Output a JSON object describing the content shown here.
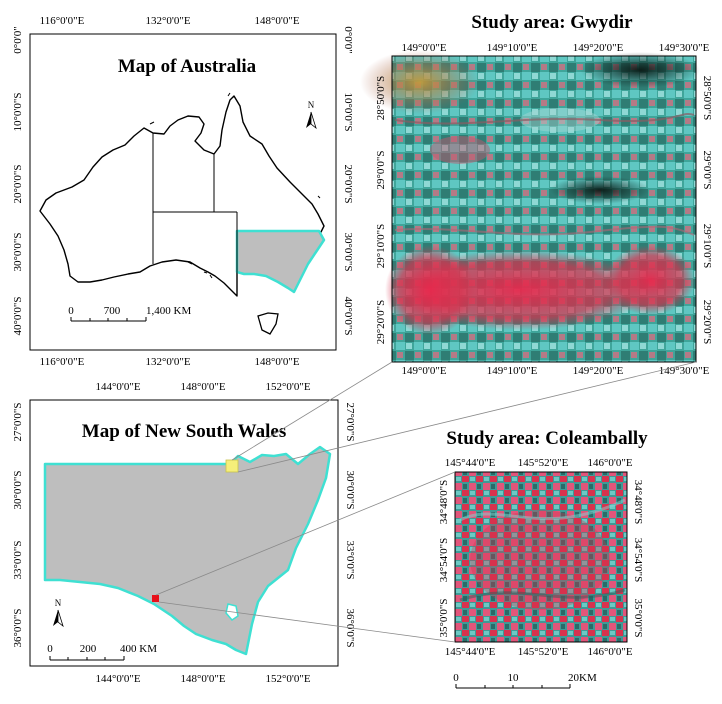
{
  "australia": {
    "title": "Map of Australia",
    "top_ticks": [
      "116°0'0\"E",
      "132°0'0\"E",
      "148°0'0\"E"
    ],
    "bottom_ticks": [
      "116°0'0\"E",
      "132°0'0\"E",
      "148°0'0\"E"
    ],
    "left_ticks": [
      "0°0'0\"",
      "10°0'0\"S",
      "20°0'0\"S",
      "30°0'0\"S",
      "40°0'0\"S"
    ],
    "right_ticks": [
      "0°0'0\"",
      "10°0'0\"S",
      "20°0'0\"S",
      "30°0'0\"S",
      "40°0'0\"S"
    ],
    "scale": {
      "labels": [
        "0",
        "700",
        "1,400 KM"
      ]
    },
    "north": "N"
  },
  "nsw": {
    "title": "Map of New South Wales",
    "top_ticks": [
      "144°0'0\"E",
      "148°0'0\"E",
      "152°0'0\"E"
    ],
    "bottom_ticks": [
      "144°0'0\"E",
      "148°0'0\"E",
      "152°0'0\"E"
    ],
    "left_ticks": [
      "27°0'0\"S",
      "30°0'0\"S",
      "33°0'0\"S",
      "36°0'0\"S"
    ],
    "right_ticks": [
      "27°0'0\"S",
      "30°0'0\"S",
      "33°0'0\"S",
      "36°0'0\"S"
    ],
    "scale": {
      "labels": [
        "0",
        "200",
        "400 KM"
      ]
    },
    "north": "N"
  },
  "gwydir": {
    "title": "Study area: Gwydir",
    "top_ticks": [
      "149°0'0\"E",
      "149°10'0\"E",
      "149°20'0\"E",
      "149°30'0\"E"
    ],
    "bottom_ticks": [
      "149°0'0\"E",
      "149°10'0\"E",
      "149°20'0\"E",
      "149°30'0\"E"
    ],
    "left_ticks": [
      "28°50'0\"S",
      "29°0'0\"S",
      "29°10'0\"S",
      "29°20'0\"S"
    ],
    "right_ticks": [
      "28°50'0\"S",
      "29°0'0\"S",
      "29°10'0\"S",
      "29°20'0\"S"
    ]
  },
  "coleambally": {
    "title": "Study area: Coleambally",
    "top_ticks": [
      "145°44'0\"E",
      "145°52'0\"E",
      "146°0'0\"E"
    ],
    "bottom_ticks": [
      "145°44'0\"E",
      "145°52'0\"E",
      "146°0'0\"E"
    ],
    "left_ticks": [
      "34°48'0\"S",
      "34°54'0\"S",
      "35°0'0\"S"
    ],
    "right_ticks": [
      "34°48'0\"S",
      "34°54'0\"S",
      "35°0'0\"S"
    ],
    "scale": {
      "labels": [
        "0",
        "10",
        "20KM"
      ]
    }
  },
  "colors": {
    "nsw_fill": "#bebebe",
    "nsw_outline": "#3fe0d2",
    "gwydir_marker": "#f5ef7a",
    "coleambally_marker": "#e8101a",
    "imagery_cyan": "#3fa59a",
    "imagery_red": "#d8324e"
  }
}
